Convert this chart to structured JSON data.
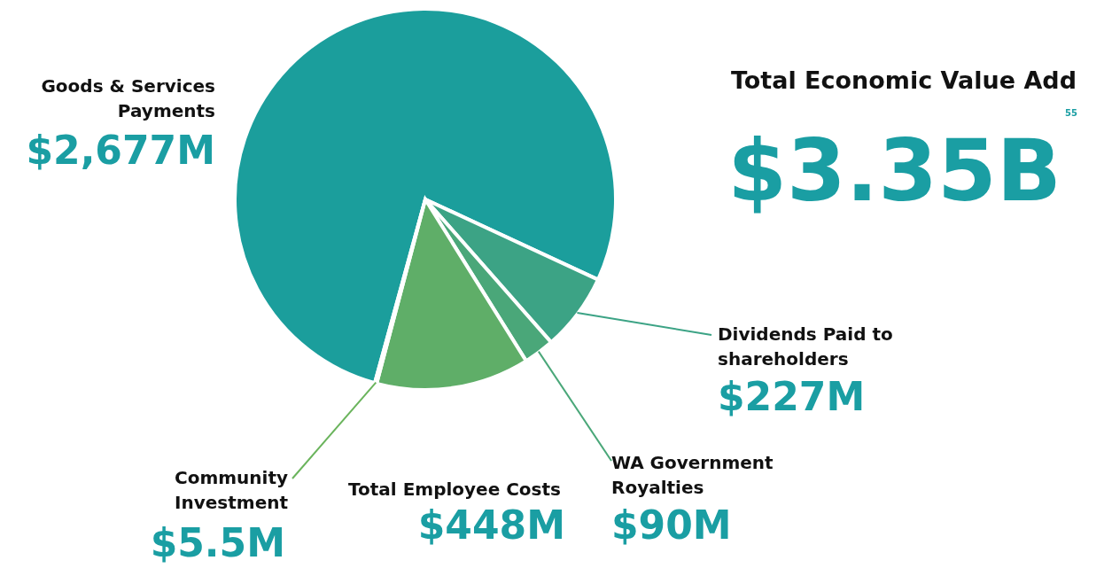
{
  "chart_data": {
    "type": "pie",
    "title": "Total Economic Value Add",
    "categories": [
      "Goods & Services Payments",
      "Dividends Paid to shareholders",
      "WA Government Royalties",
      "Total Employee Costs",
      "Community Investment"
    ],
    "values": [
      2677,
      227,
      90,
      448,
      5.5
    ],
    "colors": [
      "#1b9e9c",
      "#3ca385",
      "#4aa779",
      "#5fae68",
      "#6ab45c"
    ],
    "value_labels": [
      "$2,677M",
      "$227M",
      "$90M",
      "$448M",
      "$5.5M"
    ],
    "annotations": [
      "$3.35B$^{55}$"
    ]
  }
}
